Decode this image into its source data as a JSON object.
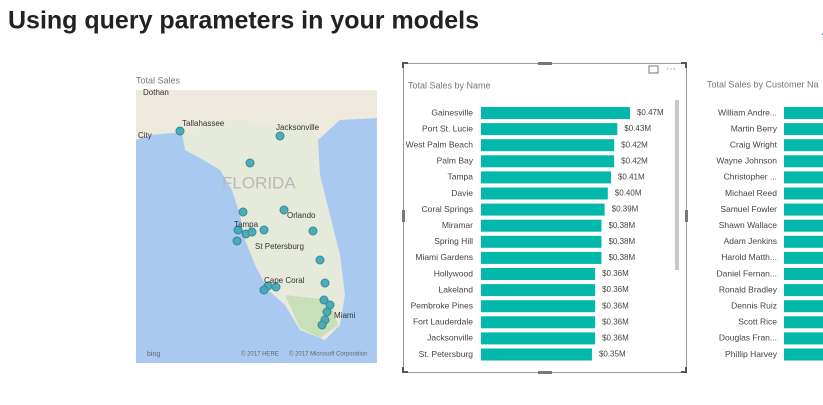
{
  "title": "Using query parameters in your models",
  "map": {
    "title": "Total Sales",
    "places": [
      "Dothan",
      "Tallahassee",
      "Jacksonville",
      "City",
      "FLORIDA",
      "Orlando",
      "Tampa",
      "St Petersburg",
      "Cape Coral",
      "Miami"
    ],
    "logo": "bing",
    "credits": [
      "© 2017 HERE",
      "© 2017 Microsoft Corporation"
    ]
  },
  "chart_data": [
    {
      "type": "bar",
      "title": "Total Sales by Name",
      "color": "#01b8aa",
      "categories": [
        "Gainesville",
        "Port St. Lucie",
        "West Palm Beach",
        "Palm Bay",
        "Tampa",
        "Davie",
        "Coral Springs",
        "Miramar",
        "Spring Hill",
        "Miami Gardens",
        "Hollywood",
        "Lakeland",
        "Pembroke Pines",
        "Fort Lauderdale",
        "Jacksonville",
        "St. Petersburg"
      ],
      "values": [
        0.47,
        0.43,
        0.42,
        0.42,
        0.41,
        0.4,
        0.39,
        0.38,
        0.38,
        0.38,
        0.36,
        0.36,
        0.36,
        0.36,
        0.36,
        0.35
      ],
      "value_labels": [
        "$0.47M",
        "$0.43M",
        "$0.42M",
        "$0.42M",
        "$0.41M",
        "$0.40M",
        "$0.39M",
        "$0.38M",
        "$0.38M",
        "$0.38M",
        "$0.36M",
        "$0.36M",
        "$0.36M",
        "$0.36M",
        "$0.36M",
        "$0.35M"
      ]
    },
    {
      "type": "bar",
      "title": "Total Sales by Customer Na",
      "color": "#01b8aa",
      "categories": [
        "William Andre...",
        "Martin Berry",
        "Craig Wright",
        "Wayne Johnson",
        "Christopher ...",
        "Michael Reed",
        "Samuel Fowler",
        "Shawn Wallace",
        "Adam Jenkins",
        "Harold Matth...",
        "Daniel Fernan...",
        "Ronald Bradley",
        "Dennis Ruiz",
        "Scott Rice",
        "Douglas Fran...",
        "Phillip Harvey"
      ]
    }
  ]
}
